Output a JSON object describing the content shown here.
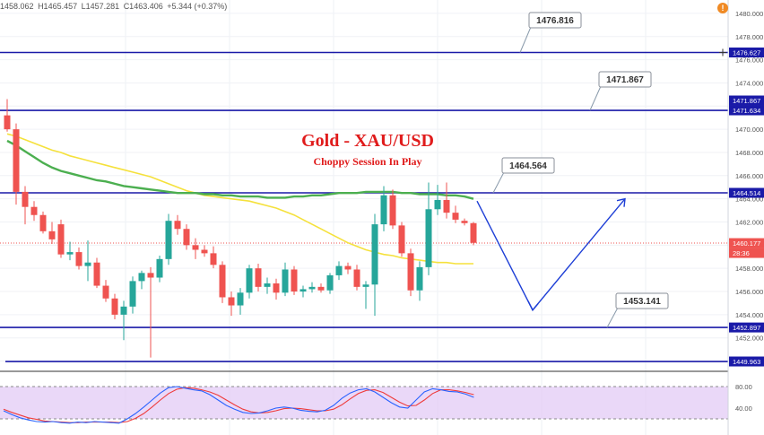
{
  "ohlc": {
    "open": "1458.062",
    "high": "H1465.457",
    "low": "L1457.281",
    "close": "C1463.406",
    "change": "+5.344 (+0.37%)"
  },
  "alert_icon": "alert-icon",
  "title": "Gold - XAU/USD",
  "subtitle": "Choppy Session In Play",
  "colors": {
    "up": "#26a69a",
    "down": "#ef5350",
    "level_line": "#1a1aa8",
    "arrow": "#1e3fd6",
    "sma_green": "#4caf50",
    "sma_yellow": "#f5e13c",
    "stoch_k": "#2962ff",
    "stoch_d": "#ef3b3b",
    "stoch_band": "#e1c8f5",
    "title": "#e01b1b"
  },
  "price_axis": {
    "ticks": [
      "1480.000",
      "1478.000",
      "1476.000",
      "1474.000",
      "1472.000",
      "1470.000",
      "1468.000",
      "1466.000",
      "1464.000",
      "1462.000",
      "1460.000",
      "1458.000",
      "1456.000",
      "1454.000",
      "1452.000",
      "1450.000"
    ],
    "min": 1449.5,
    "max": 1481
  },
  "levels": [
    {
      "price": 1476.627,
      "axis_label": "1476.627",
      "callout": "1476.816"
    },
    {
      "price": 1471.634,
      "axis_label": "1471.634",
      "callout": "1471.867",
      "extra_label": "1471.867"
    },
    {
      "price": 1464.514,
      "axis_label": "1464.514",
      "callout": "1464.564"
    },
    {
      "price": 1452.897,
      "axis_label": "1452.897",
      "callout": "1453.141"
    },
    {
      "price": 1449.963,
      "axis_label": "1449.963",
      "callout": ""
    }
  ],
  "current_price": {
    "label": "1460.177",
    "timer": "28:36",
    "price": 1460.177
  },
  "oscillator": {
    "ticks": [
      "80.00",
      "40.00"
    ]
  },
  "chart_data": {
    "type": "candlestick",
    "candles": [
      {
        "o": 1471.2,
        "h": 1472.6,
        "l": 1469.8,
        "c": 1470.0
      },
      {
        "o": 1470.0,
        "h": 1470.5,
        "l": 1463.5,
        "c": 1464.6
      },
      {
        "o": 1464.6,
        "h": 1465.1,
        "l": 1461.8,
        "c": 1463.3
      },
      {
        "o": 1463.3,
        "h": 1463.8,
        "l": 1462.1,
        "c": 1462.6
      },
      {
        "o": 1462.6,
        "h": 1462.9,
        "l": 1461.0,
        "c": 1461.2
      },
      {
        "o": 1461.2,
        "h": 1462.0,
        "l": 1460.1,
        "c": 1460.5
      },
      {
        "o": 1461.8,
        "h": 1462.2,
        "l": 1458.9,
        "c": 1459.2
      },
      {
        "o": 1459.2,
        "h": 1460.3,
        "l": 1458.7,
        "c": 1459.4
      },
      {
        "o": 1459.4,
        "h": 1459.8,
        "l": 1457.9,
        "c": 1458.2
      },
      {
        "o": 1458.2,
        "h": 1460.4,
        "l": 1456.9,
        "c": 1458.5
      },
      {
        "o": 1458.5,
        "h": 1458.9,
        "l": 1456.3,
        "c": 1456.5
      },
      {
        "o": 1456.5,
        "h": 1457.0,
        "l": 1455.1,
        "c": 1455.4
      },
      {
        "o": 1455.4,
        "h": 1455.8,
        "l": 1453.6,
        "c": 1454.0
      },
      {
        "o": 1454.0,
        "h": 1455.2,
        "l": 1451.8,
        "c": 1454.7
      },
      {
        "o": 1454.7,
        "h": 1457.3,
        "l": 1454.1,
        "c": 1456.9
      },
      {
        "o": 1456.9,
        "h": 1457.8,
        "l": 1456.2,
        "c": 1457.6
      },
      {
        "o": 1457.6,
        "h": 1458.1,
        "l": 1450.3,
        "c": 1457.2
      },
      {
        "o": 1457.2,
        "h": 1459.1,
        "l": 1456.8,
        "c": 1458.8
      },
      {
        "o": 1458.8,
        "h": 1462.7,
        "l": 1458.3,
        "c": 1462.1
      },
      {
        "o": 1462.1,
        "h": 1462.6,
        "l": 1460.9,
        "c": 1461.4
      },
      {
        "o": 1461.4,
        "h": 1461.8,
        "l": 1459.6,
        "c": 1460.0
      },
      {
        "o": 1460.0,
        "h": 1460.6,
        "l": 1458.8,
        "c": 1459.6
      },
      {
        "o": 1459.6,
        "h": 1460.0,
        "l": 1459.0,
        "c": 1459.3
      },
      {
        "o": 1459.3,
        "h": 1459.9,
        "l": 1458.0,
        "c": 1458.3
      },
      {
        "o": 1458.3,
        "h": 1458.6,
        "l": 1455.0,
        "c": 1455.5
      },
      {
        "o": 1455.5,
        "h": 1456.0,
        "l": 1453.9,
        "c": 1454.8
      },
      {
        "o": 1454.8,
        "h": 1456.3,
        "l": 1454.0,
        "c": 1455.9
      },
      {
        "o": 1455.9,
        "h": 1458.3,
        "l": 1455.4,
        "c": 1458.0
      },
      {
        "o": 1458.0,
        "h": 1458.4,
        "l": 1456.0,
        "c": 1456.4
      },
      {
        "o": 1456.4,
        "h": 1457.2,
        "l": 1455.8,
        "c": 1456.7
      },
      {
        "o": 1456.7,
        "h": 1457.1,
        "l": 1455.3,
        "c": 1455.9
      },
      {
        "o": 1455.9,
        "h": 1458.5,
        "l": 1455.6,
        "c": 1457.9
      },
      {
        "o": 1457.9,
        "h": 1458.2,
        "l": 1455.7,
        "c": 1456.0
      },
      {
        "o": 1456.0,
        "h": 1456.5,
        "l": 1455.5,
        "c": 1456.2
      },
      {
        "o": 1456.2,
        "h": 1456.8,
        "l": 1455.9,
        "c": 1456.4
      },
      {
        "o": 1456.4,
        "h": 1456.7,
        "l": 1455.9,
        "c": 1456.1
      },
      {
        "o": 1456.1,
        "h": 1457.6,
        "l": 1455.8,
        "c": 1457.4
      },
      {
        "o": 1457.4,
        "h": 1458.6,
        "l": 1457.0,
        "c": 1458.2
      },
      {
        "o": 1458.2,
        "h": 1458.5,
        "l": 1457.5,
        "c": 1457.9
      },
      {
        "o": 1457.9,
        "h": 1458.3,
        "l": 1456.1,
        "c": 1456.4
      },
      {
        "o": 1456.4,
        "h": 1456.9,
        "l": 1454.5,
        "c": 1456.6
      },
      {
        "o": 1456.6,
        "h": 1462.7,
        "l": 1453.9,
        "c": 1461.8
      },
      {
        "o": 1461.8,
        "h": 1465.1,
        "l": 1461.2,
        "c": 1464.3
      },
      {
        "o": 1464.3,
        "h": 1464.8,
        "l": 1461.4,
        "c": 1461.7
      },
      {
        "o": 1461.7,
        "h": 1462.0,
        "l": 1459.0,
        "c": 1459.3
      },
      {
        "o": 1459.3,
        "h": 1459.7,
        "l": 1455.6,
        "c": 1456.1
      },
      {
        "o": 1456.1,
        "h": 1458.6,
        "l": 1455.2,
        "c": 1458.1
      },
      {
        "o": 1458.1,
        "h": 1465.4,
        "l": 1457.4,
        "c": 1463.1
      },
      {
        "o": 1463.1,
        "h": 1465.2,
        "l": 1462.6,
        "c": 1463.9
      },
      {
        "o": 1463.9,
        "h": 1465.4,
        "l": 1462.3,
        "c": 1462.8
      },
      {
        "o": 1462.8,
        "h": 1463.4,
        "l": 1461.9,
        "c": 1462.2
      },
      {
        "o": 1462.1,
        "h": 1462.3,
        "l": 1461.7,
        "c": 1461.9
      },
      {
        "o": 1461.9,
        "h": 1462.0,
        "l": 1460.0,
        "c": 1460.2
      }
    ],
    "sma_green": [
      1469.0,
      1468.6,
      1468.1,
      1467.6,
      1467.1,
      1466.7,
      1466.4,
      1466.2,
      1466.0,
      1465.8,
      1465.6,
      1465.5,
      1465.3,
      1465.1,
      1465.0,
      1464.9,
      1464.8,
      1464.7,
      1464.6,
      1464.5,
      1464.5,
      1464.5,
      1464.4,
      1464.4,
      1464.3,
      1464.3,
      1464.2,
      1464.2,
      1464.2,
      1464.1,
      1464.1,
      1464.1,
      1464.2,
      1464.2,
      1464.3,
      1464.3,
      1464.4,
      1464.5,
      1464.5,
      1464.5,
      1464.6,
      1464.6,
      1464.6,
      1464.6,
      1464.5,
      1464.5,
      1464.4,
      1464.4,
      1464.4,
      1464.3,
      1464.3,
      1464.2,
      1464.0
    ],
    "sma_yellow": [
      1469.6,
      1469.4,
      1469.1,
      1468.8,
      1468.5,
      1468.2,
      1468.0,
      1467.7,
      1467.5,
      1467.3,
      1467.1,
      1466.9,
      1466.7,
      1466.5,
      1466.3,
      1466.1,
      1465.9,
      1465.6,
      1465.3,
      1465.0,
      1464.7,
      1464.5,
      1464.3,
      1464.2,
      1464.1,
      1464.0,
      1463.9,
      1463.8,
      1463.6,
      1463.4,
      1463.2,
      1462.9,
      1462.6,
      1462.2,
      1461.8,
      1461.4,
      1461.0,
      1460.6,
      1460.2,
      1459.9,
      1459.6,
      1459.4,
      1459.2,
      1459.1,
      1458.9,
      1458.8,
      1458.7,
      1458.6,
      1458.5,
      1458.5,
      1458.4,
      1458.4,
      1458.4
    ],
    "stoch_k": [
      35,
      28,
      22,
      18,
      15,
      14,
      15,
      13,
      12,
      14,
      13,
      15,
      14,
      13,
      12,
      20,
      30,
      42,
      55,
      68,
      78,
      80,
      77,
      74,
      72,
      65,
      55,
      45,
      38,
      32,
      30,
      31,
      35,
      40,
      42,
      40,
      36,
      34,
      33,
      36,
      45,
      58,
      68,
      74,
      76,
      70,
      60,
      50,
      42,
      40,
      55,
      70,
      76,
      74,
      71,
      70,
      66,
      60
    ],
    "stoch_d": [
      38,
      32,
      27,
      22,
      19,
      16,
      15,
      14,
      13,
      13,
      14,
      14,
      14,
      14,
      13,
      15,
      21,
      30,
      42,
      55,
      67,
      75,
      78,
      77,
      74,
      70,
      64,
      55,
      46,
      38,
      33,
      31,
      32,
      35,
      39,
      40,
      39,
      37,
      35,
      35,
      38,
      46,
      57,
      67,
      73,
      74,
      69,
      60,
      51,
      44,
      45,
      55,
      67,
      74,
      74,
      72,
      69,
      65
    ]
  }
}
